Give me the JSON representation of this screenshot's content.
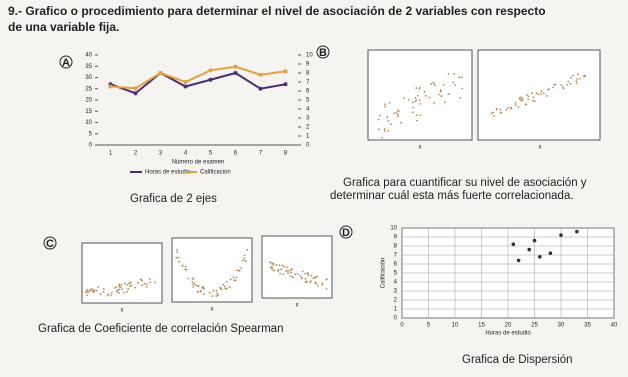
{
  "question": {
    "line1": "9.- Grafico o procedimiento para determinar el nivel de asociación de 2 variables con respecto",
    "line2": "de una variable fija."
  },
  "options": [
    {
      "letter": "A",
      "caption": "Grafica de 2 ejes",
      "chart": {
        "type": "line",
        "categories": [
          "1",
          "2",
          "3",
          "4",
          "5",
          "6",
          "7",
          "8"
        ],
        "xlabel": "Número de examen",
        "ylim": [
          0,
          40
        ],
        "yticks": [
          0,
          5,
          10,
          15,
          20,
          25,
          30,
          35,
          40
        ],
        "y2lim": [
          0,
          10
        ],
        "y2ticks": [
          0,
          1,
          2,
          3,
          4,
          5,
          6,
          7,
          8,
          9,
          10
        ],
        "series": [
          {
            "name": "Horas de estudio",
            "color": "#4b2f6e",
            "values": [
              27,
              23,
              32,
              26,
              29,
              32,
              25,
              27
            ]
          },
          {
            "name": "Calificación",
            "color": "#e2a048",
            "axis": "y2",
            "values": [
              6.5,
              6.3,
              8,
              7,
              8.3,
              8.7,
              7.8,
              8.2
            ]
          }
        ]
      }
    },
    {
      "letter": "B",
      "caption_line1": "Grafica para cuantificar su nivel de asociación y",
      "caption_line2": "determinar cuál esta más fuerte correlacionada.",
      "axis_labels": [
        "x",
        "x"
      ]
    },
    {
      "letter": "C",
      "caption": "Grafica de Coeficiente de correlación Spearman",
      "axis_labels": [
        "x",
        "x",
        "x"
      ]
    },
    {
      "letter": "D",
      "caption": "Grafica de Dispersión",
      "chart": {
        "type": "scatter",
        "xlabel": "Horas de estudio",
        "ylabel": "Calificación",
        "xlim": [
          0,
          40
        ],
        "xticks": [
          0,
          5,
          10,
          15,
          20,
          25,
          30,
          35,
          40
        ],
        "ylim": [
          0,
          10
        ],
        "yticks": [
          0,
          1,
          2,
          3,
          4,
          5,
          6,
          7,
          8,
          9,
          10
        ],
        "grid": true,
        "color": "#333333",
        "x": [
          21,
          22,
          24,
          25,
          26,
          28,
          30,
          33
        ],
        "y": [
          8.2,
          6.4,
          7.6,
          8.6,
          6.8,
          7.2,
          9.2,
          9.6
        ]
      }
    }
  ]
}
